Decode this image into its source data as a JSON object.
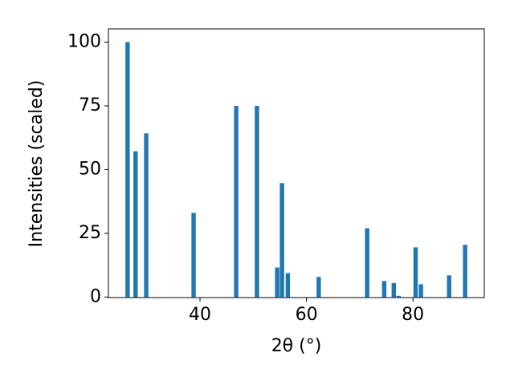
{
  "chart_data": {
    "type": "bar",
    "x_label": "2θ (°)",
    "y_label": "Intensities (scaled)",
    "x": [
      26.4,
      27.9,
      29.9,
      38.8,
      46.8,
      50.7,
      54.5,
      55.4,
      56.5,
      62.3,
      71.4,
      74.6,
      76.4,
      77.3,
      80.5,
      81.5,
      86.8,
      89.8
    ],
    "values": [
      100,
      57.2,
      64.2,
      33,
      75,
      75,
      11.6,
      44.7,
      9.4,
      7.9,
      27,
      6.3,
      5.5,
      0.5,
      19.5,
      5,
      8.5,
      20.5
    ],
    "color": "#1f77b4",
    "xlim": [
      22.8,
      93.4
    ],
    "xticks": [
      40,
      60,
      80
    ],
    "ylim": [
      -0.2,
      105.2
    ],
    "yticks": [
      0,
      25,
      50,
      75,
      100
    ],
    "grid": false
  }
}
